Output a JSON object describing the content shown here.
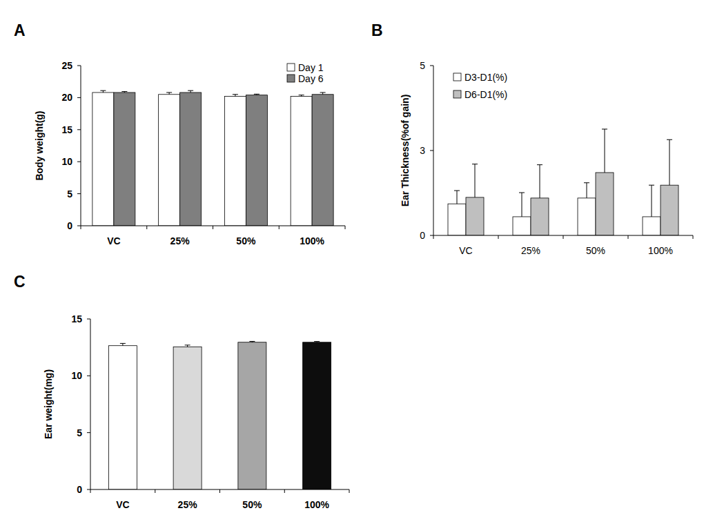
{
  "chart_data": [
    {
      "type": "bar",
      "title": "A",
      "y_label": "Body weight(g)",
      "categories": [
        "VC",
        "25%",
        "50%",
        "100%"
      ],
      "series": [
        {
          "name": "Day 1",
          "color": "#ffffff",
          "values": [
            20.8,
            20.5,
            20.2,
            20.2
          ],
          "errors": [
            0.3,
            0.3,
            0.3,
            0.2
          ]
        },
        {
          "name": "Day 6",
          "color": "#7f7f7f",
          "values": [
            20.8,
            20.8,
            20.4,
            20.5
          ],
          "errors": [
            0.15,
            0.3,
            0.15,
            0.3
          ]
        }
      ],
      "ylim": [
        0,
        25
      ],
      "yticks": [
        0,
        5,
        10,
        15,
        20,
        25
      ],
      "grid": false,
      "legend": "top right"
    },
    {
      "type": "bar",
      "title": "B",
      "y_label": "Ear Thickness(%of gain)",
      "categories": [
        "VC",
        "25%",
        "50%",
        "100%"
      ],
      "series": [
        {
          "name": "D3-D1(%)",
          "color": "#ffffff",
          "values": [
            0.93,
            0.55,
            1.1,
            0.55
          ],
          "errors": [
            0.39,
            0.71,
            0.45,
            0.93
          ]
        },
        {
          "name": "D6-D1(%)",
          "color": "#bfbfbf",
          "values": [
            1.12,
            1.1,
            1.85,
            1.48
          ],
          "errors": [
            0.98,
            0.98,
            1.28,
            1.34
          ]
        }
      ],
      "ylim": [
        0,
        5
      ],
      "yticks": [
        0,
        {
          "value": 2.5,
          "label": "3"
        },
        5
      ],
      "grid": false,
      "legend": "top left"
    },
    {
      "type": "bar",
      "title": "C",
      "y_label": "Ear weight(mg)",
      "categories": [
        "VC",
        "25%",
        "50%",
        "100%"
      ],
      "series": [
        {
          "name": null,
          "colors": [
            "#ffffff",
            "#d9d9d9",
            "#a6a6a6",
            "#0d0d0d"
          ],
          "values": [
            12.65,
            12.55,
            12.95,
            12.95
          ],
          "errors": [
            0.2,
            0.15,
            0.08,
            0.07
          ]
        }
      ],
      "ylim": [
        0,
        15
      ],
      "yticks": [
        0,
        5,
        10,
        15
      ],
      "grid": false
    }
  ]
}
